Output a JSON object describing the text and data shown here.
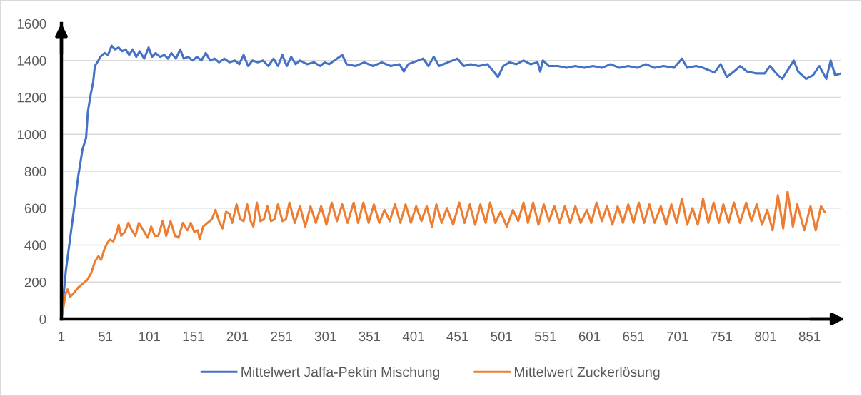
{
  "chart_data": {
    "type": "line",
    "xlim": [
      1,
      887
    ],
    "xticks": [
      1,
      51,
      101,
      151,
      201,
      251,
      301,
      351,
      401,
      451,
      501,
      551,
      601,
      651,
      701,
      751,
      801,
      851
    ],
    "ylim": [
      0,
      1600
    ],
    "yticks": [
      0,
      200,
      400,
      600,
      800,
      1000,
      1200,
      1400,
      1600
    ],
    "grid": "y",
    "legend": "bottom",
    "series": [
      {
        "name": "Mittelwert Jaffa-Pektin Mischung",
        "color": "#4472c4",
        "x": [
          1,
          6,
          11,
          16,
          20,
          25,
          29,
          31,
          34,
          37,
          39,
          43,
          45,
          50,
          54,
          58,
          62,
          66,
          70,
          74,
          78,
          82,
          86,
          90,
          95,
          100,
          104,
          108,
          113,
          118,
          122,
          126,
          131,
          136,
          140,
          145,
          150,
          155,
          160,
          165,
          170,
          175,
          180,
          186,
          192,
          198,
          203,
          208,
          213,
          218,
          224,
          230,
          236,
          242,
          247,
          252,
          257,
          262,
          267,
          272,
          280,
          288,
          295,
          300,
          305,
          320,
          325,
          335,
          345,
          355,
          365,
          375,
          385,
          390,
          395,
          412,
          418,
          424,
          430,
          440,
          451,
          458,
          466,
          475,
          485,
          492,
          497,
          503,
          510,
          518,
          526,
          534,
          542,
          545,
          548,
          555,
          565,
          575,
          585,
          595,
          605,
          615,
          625,
          635,
          645,
          655,
          665,
          675,
          685,
          697,
          706,
          712,
          722,
          730,
          743,
          750,
          757,
          765,
          772,
          780,
          790,
          800,
          806,
          815,
          820,
          833,
          838,
          847,
          855,
          862,
          870,
          875,
          880,
          887
        ],
        "values": [
          0,
          260,
          440,
          620,
          770,
          920,
          980,
          1120,
          1210,
          1280,
          1370,
          1400,
          1420,
          1440,
          1430,
          1480,
          1460,
          1470,
          1450,
          1460,
          1430,
          1460,
          1420,
          1450,
          1410,
          1470,
          1420,
          1440,
          1420,
          1430,
          1410,
          1440,
          1410,
          1460,
          1410,
          1420,
          1400,
          1420,
          1400,
          1440,
          1400,
          1410,
          1390,
          1410,
          1390,
          1400,
          1380,
          1430,
          1370,
          1400,
          1390,
          1400,
          1370,
          1410,
          1370,
          1430,
          1370,
          1420,
          1380,
          1400,
          1380,
          1390,
          1370,
          1390,
          1380,
          1430,
          1380,
          1370,
          1390,
          1370,
          1390,
          1370,
          1380,
          1340,
          1380,
          1410,
          1370,
          1420,
          1370,
          1390,
          1410,
          1370,
          1380,
          1370,
          1380,
          1340,
          1310,
          1370,
          1390,
          1380,
          1400,
          1380,
          1390,
          1340,
          1400,
          1370,
          1370,
          1360,
          1370,
          1360,
          1370,
          1360,
          1380,
          1360,
          1370,
          1360,
          1380,
          1360,
          1370,
          1360,
          1410,
          1360,
          1370,
          1360,
          1335,
          1380,
          1310,
          1340,
          1370,
          1340,
          1330,
          1330,
          1370,
          1320,
          1300,
          1400,
          1340,
          1300,
          1320,
          1370,
          1300,
          1400,
          1320,
          1330
        ]
      },
      {
        "name": "Mittelwert Zuckerlösung",
        "color": "#ed7d31",
        "x": [
          1,
          6,
          8,
          11,
          15,
          20,
          25,
          30,
          35,
          39,
          43,
          46,
          50,
          53,
          56,
          60,
          64,
          66,
          69,
          73,
          77,
          81,
          85,
          89,
          94,
          99,
          103,
          107,
          111,
          116,
          120,
          125,
          130,
          134,
          139,
          144,
          148,
          152,
          156,
          158,
          162,
          167,
          172,
          176,
          180,
          184,
          188,
          192,
          195,
          200,
          204,
          208,
          212,
          216,
          219,
          223,
          227,
          231,
          235,
          239,
          243,
          247,
          252,
          256,
          260,
          266,
          272,
          278,
          284,
          290,
          296,
          302,
          308,
          314,
          320,
          326,
          333,
          338,
          344,
          350,
          356,
          362,
          368,
          374,
          380,
          386,
          392,
          398,
          404,
          410,
          416,
          422,
          427,
          433,
          439,
          446,
          453,
          459,
          465,
          471,
          477,
          483,
          488,
          494,
          500,
          507,
          514,
          520,
          526,
          531,
          537,
          543,
          549,
          555,
          561,
          567,
          573,
          579,
          585,
          591,
          598,
          603,
          609,
          615,
          621,
          627,
          633,
          639,
          645,
          651,
          657,
          663,
          669,
          675,
          682,
          688,
          694,
          700,
          706,
          712,
          718,
          724,
          730,
          736,
          742,
          748,
          753,
          759,
          765,
          772,
          779,
          785,
          791,
          797,
          803,
          809,
          815,
          821,
          826,
          832,
          837,
          845,
          852,
          858,
          864,
          868
        ],
        "values": [
          0,
          140,
          160,
          120,
          140,
          170,
          190,
          210,
          250,
          310,
          340,
          320,
          380,
          410,
          430,
          420,
          470,
          510,
          450,
          470,
          520,
          480,
          450,
          520,
          480,
          440,
          500,
          450,
          450,
          530,
          450,
          530,
          450,
          440,
          520,
          480,
          520,
          470,
          480,
          430,
          500,
          520,
          540,
          590,
          530,
          490,
          580,
          570,
          520,
          620,
          540,
          530,
          620,
          530,
          500,
          630,
          530,
          540,
          610,
          530,
          540,
          620,
          530,
          540,
          630,
          520,
          610,
          500,
          610,
          520,
          610,
          510,
          630,
          530,
          620,
          520,
          630,
          520,
          630,
          520,
          620,
          520,
          590,
          530,
          620,
          520,
          620,
          520,
          610,
          530,
          610,
          500,
          620,
          520,
          600,
          510,
          630,
          520,
          620,
          510,
          620,
          520,
          630,
          520,
          580,
          500,
          590,
          530,
          630,
          520,
          630,
          510,
          620,
          530,
          610,
          520,
          610,
          520,
          610,
          520,
          590,
          520,
          630,
          530,
          610,
          510,
          610,
          520,
          620,
          520,
          630,
          520,
          620,
          520,
          610,
          510,
          620,
          520,
          650,
          510,
          600,
          510,
          650,
          520,
          630,
          520,
          620,
          520,
          630,
          520,
          630,
          530,
          620,
          510,
          590,
          480,
          670,
          490,
          690,
          500,
          620,
          480,
          610,
          480,
          610,
          580
        ]
      }
    ]
  }
}
